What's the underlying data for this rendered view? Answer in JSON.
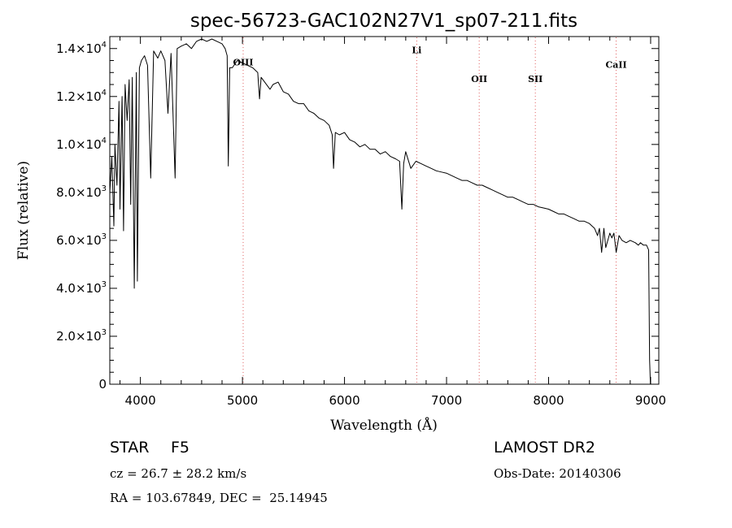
{
  "chart_data": {
    "type": "line",
    "title": "spec-56723-GAC102N27V1_sp07-211.fits",
    "xlabel": "Wavelength (Å)",
    "ylabel": "Flux (relative)",
    "xlim": [
      3700,
      9080
    ],
    "ylim": [
      0,
      14500
    ],
    "x_ticks": [
      {
        "value": 4000,
        "label": "4000"
      },
      {
        "value": 5000,
        "label": "5000"
      },
      {
        "value": 6000,
        "label": "6000"
      },
      {
        "value": 7000,
        "label": "7000"
      },
      {
        "value": 8000,
        "label": "8000"
      },
      {
        "value": 9000,
        "label": "9000"
      }
    ],
    "y_ticks": [
      {
        "value": 0,
        "mant": "0",
        "exp": ""
      },
      {
        "value": 2000,
        "mant": "2.0×10",
        "exp": "3"
      },
      {
        "value": 4000,
        "mant": "4.0×10",
        "exp": "3"
      },
      {
        "value": 6000,
        "mant": "6.0×10",
        "exp": "3"
      },
      {
        "value": 8000,
        "mant": "8.0×10",
        "exp": "3"
      },
      {
        "value": 10000,
        "mant": "1.0×10",
        "exp": "4"
      },
      {
        "value": 12000,
        "mant": "1.2×10",
        "exp": "4"
      },
      {
        "value": 14000,
        "mant": "1.4×10",
        "exp": "4"
      }
    ],
    "spectral_lines": [
      {
        "label": "OIII",
        "x": 5007,
        "label_y": 13300
      },
      {
        "label": "Li",
        "x": 6708,
        "label_y": 13800
      },
      {
        "label": "OII",
        "x": 7320,
        "label_y": 12600
      },
      {
        "label": "SII",
        "x": 7870,
        "label_y": 12600
      },
      {
        "label": "CaII",
        "x": 8662,
        "label_y": 13200
      }
    ],
    "series": [
      {
        "color": "#000000",
        "x": [
          3700,
          3720,
          3740,
          3750,
          3770,
          3790,
          3800,
          3820,
          3835,
          3850,
          3870,
          3890,
          3905,
          3920,
          3940,
          3960,
          3970,
          3990,
          4010,
          4040,
          4070,
          4101,
          4130,
          4170,
          4200,
          4240,
          4270,
          4300,
          4340,
          4360,
          4400,
          4450,
          4500,
          4550,
          4600,
          4650,
          4700,
          4750,
          4800,
          4830,
          4850,
          4861,
          4875,
          4900,
          4950,
          5000,
          5050,
          5100,
          5150,
          5167,
          5183,
          5200,
          5270,
          5300,
          5350,
          5400,
          5450,
          5500,
          5550,
          5600,
          5650,
          5700,
          5750,
          5800,
          5850,
          5880,
          5893,
          5910,
          5950,
          6000,
          6050,
          6100,
          6150,
          6200,
          6250,
          6300,
          6350,
          6400,
          6450,
          6500,
          6540,
          6562,
          6580,
          6600,
          6650,
          6700,
          6750,
          6800,
          6850,
          6900,
          6950,
          7000,
          7050,
          7100,
          7150,
          7200,
          7250,
          7300,
          7350,
          7400,
          7450,
          7500,
          7550,
          7600,
          7650,
          7700,
          7750,
          7800,
          7850,
          7900,
          7950,
          8000,
          8050,
          8100,
          8150,
          8200,
          8250,
          8300,
          8350,
          8400,
          8450,
          8480,
          8498,
          8520,
          8542,
          8560,
          8600,
          8620,
          8640,
          8662,
          8690,
          8720,
          8760,
          8800,
          8850,
          8880,
          8900,
          8930,
          8960,
          8980,
          8990,
          8998
        ],
        "y": [
          8000,
          9500,
          6600,
          10000,
          8300,
          11800,
          7300,
          12000,
          6400,
          12500,
          11000,
          12700,
          7500,
          12800,
          4000,
          13000,
          4300,
          13200,
          13500,
          13700,
          13300,
          8600,
          13900,
          13600,
          13900,
          13500,
          11300,
          13800,
          8600,
          14000,
          14100,
          14200,
          14000,
          14300,
          14400,
          14300,
          14400,
          14300,
          14200,
          14000,
          13700,
          9100,
          13200,
          13200,
          13500,
          13400,
          13300,
          13200,
          13000,
          11900,
          12800,
          12700,
          12300,
          12500,
          12600,
          12200,
          12100,
          11800,
          11700,
          11700,
          11400,
          11300,
          11100,
          11000,
          10800,
          10400,
          9000,
          10500,
          10400,
          10500,
          10200,
          10100,
          9900,
          10000,
          9800,
          9800,
          9600,
          9700,
          9500,
          9400,
          9300,
          7300,
          9200,
          9700,
          9000,
          9300,
          9200,
          9100,
          9000,
          8900,
          8850,
          8800,
          8700,
          8600,
          8500,
          8500,
          8400,
          8300,
          8300,
          8200,
          8100,
          8000,
          7900,
          7800,
          7800,
          7700,
          7600,
          7500,
          7500,
          7400,
          7350,
          7300,
          7200,
          7100,
          7100,
          7000,
          6900,
          6800,
          6800,
          6700,
          6500,
          6200,
          6500,
          5500,
          6500,
          5700,
          6300,
          6100,
          6300,
          5500,
          6200,
          6000,
          5900,
          6000,
          5900,
          5800,
          5900,
          5800,
          5800,
          5600,
          1000,
          0
        ]
      }
    ]
  },
  "info": {
    "object_type": "STAR",
    "subclass": "F5",
    "cz": "cz = 26.7 ± 28.2 km/s",
    "coords": "RA = 103.67849, DEC =  25.14945",
    "release": "LAMOST DR2",
    "obs_date": "Obs-Date: 20140306"
  }
}
